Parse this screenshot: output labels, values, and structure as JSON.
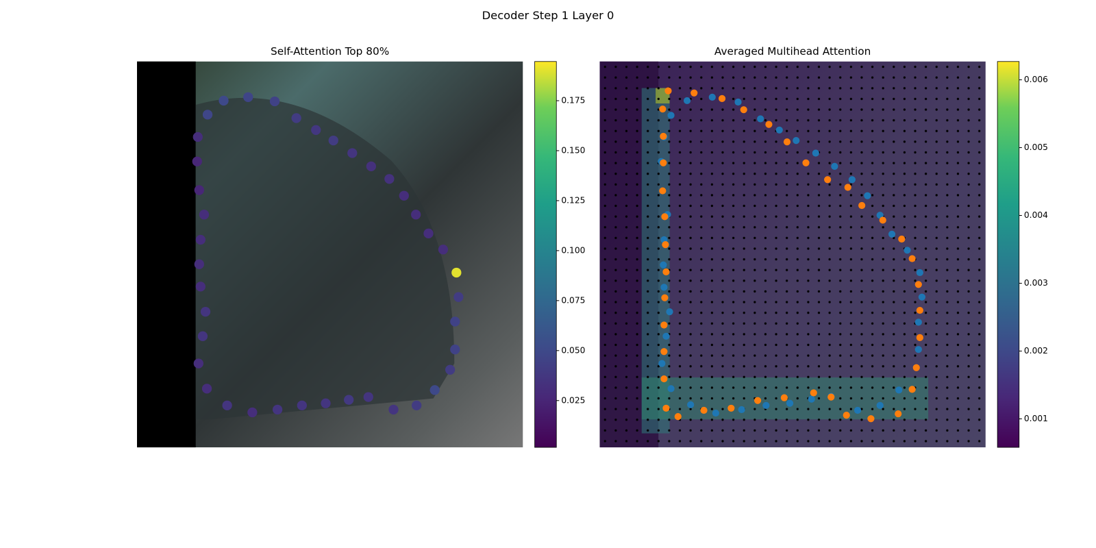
{
  "title": "Decoder Step 1 Layer 0",
  "chart_data": [
    {
      "type": "scatter",
      "title": "Self-Attention Top 80%",
      "xlim": [
        0,
        552
      ],
      "ylim": [
        552,
        0
      ],
      "x": [
        101,
        124,
        159,
        197,
        228,
        256,
        281,
        308,
        335,
        361,
        382,
        399,
        417,
        438,
        457,
        460,
        455,
        455,
        448,
        426,
        400,
        367,
        331,
        303,
        270,
        236,
        201,
        165,
        129,
        100,
        88,
        94,
        98,
        91,
        89,
        91,
        96,
        89,
        86,
        87
      ],
      "y": [
        76,
        56,
        51,
        57,
        81,
        98,
        113,
        131,
        150,
        168,
        192,
        219,
        246,
        269,
        302,
        337,
        372,
        412,
        441,
        470,
        492,
        498,
        480,
        484,
        489,
        492,
        498,
        502,
        492,
        468,
        432,
        393,
        358,
        322,
        290,
        255,
        219,
        184,
        143,
        108
      ],
      "values": [
        0.048,
        0.05,
        0.047,
        0.045,
        0.04,
        0.037,
        0.04,
        0.035,
        0.032,
        0.033,
        0.03,
        0.03,
        0.03,
        0.03,
        0.19,
        0.04,
        0.045,
        0.045,
        0.04,
        0.05,
        0.04,
        0.035,
        0.035,
        0.038,
        0.035,
        0.035,
        0.035,
        0.03,
        0.035,
        0.03,
        0.03,
        0.035,
        0.035,
        0.03,
        0.03,
        0.03,
        0.03,
        0.025,
        0.025,
        0.03
      ],
      "clim": [
        0.0016,
        0.1946
      ],
      "cticks": [
        0.025,
        {
          "value": 0.05,
          "label": "0.050"
        },
        0.075,
        {
          "value": 0.1,
          "label": "0.100"
        },
        0.125,
        {
          "value": 0.15,
          "label": "0.150"
        },
        0.175
      ]
    },
    {
      "type": "scatter",
      "title": "Averaged Multihead Attention",
      "xlim": [
        0,
        552
      ],
      "ylim": [
        552,
        0
      ],
      "series": [
        {
          "color": "#1f77b4",
          "x": [
            102,
            125,
            161,
            198,
            230,
            257,
            281,
            309,
            336,
            361,
            383,
            401,
            418,
            440,
            458,
            461,
            456,
            456,
            428,
            401,
            369,
            331,
            303,
            272,
            238,
            203,
            166,
            130,
            102,
            89,
            95,
            100,
            92,
            91,
            92,
            97,
            88,
            92
          ],
          "y": [
            77,
            56,
            51,
            58,
            82,
            98,
            113,
            131,
            150,
            169,
            192,
            220,
            247,
            270,
            302,
            337,
            373,
            412,
            470,
            492,
            499,
            479,
            483,
            489,
            492,
            498,
            503,
            491,
            468,
            432,
            393,
            358,
            323,
            291,
            255,
            219,
            143,
            108
          ]
        },
        {
          "color": "#ff7f0e",
          "x": [
            98,
            135,
            175,
            206,
            242,
            268,
            295,
            326,
            355,
            375,
            405,
            432,
            447,
            456,
            458,
            458,
            453,
            447,
            427,
            388,
            353,
            331,
            306,
            264,
            226,
            188,
            149,
            112,
            95,
            92,
            92,
            92,
            93,
            95,
            94,
            93,
            90,
            91,
            91,
            90
          ],
          "y": [
            42,
            45,
            53,
            69,
            90,
            115,
            145,
            169,
            180,
            206,
            227,
            254,
            282,
            319,
            356,
            395,
            438,
            469,
            504,
            511,
            506,
            480,
            474,
            481,
            485,
            496,
            499,
            508,
            496,
            454,
            415,
            377,
            338,
            301,
            262,
            222,
            185,
            145,
            107,
            68
          ]
        }
      ],
      "clim": [
        0.00058,
        0.00627
      ],
      "cticks": [
        0.001,
        0.002,
        0.003,
        0.004,
        0.005,
        0.006
      ]
    }
  ]
}
